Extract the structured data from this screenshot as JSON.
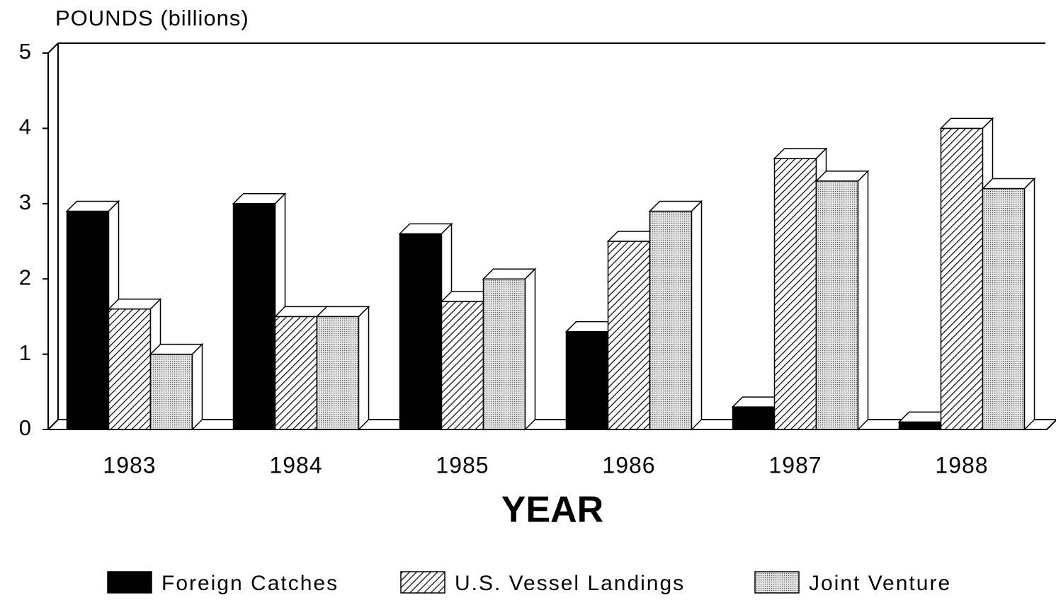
{
  "chart_data": {
    "type": "bar3d",
    "ylabel": "POUNDS (billions)",
    "xlabel": "YEAR",
    "categories": [
      "1983",
      "1984",
      "1985",
      "1986",
      "1987",
      "1988"
    ],
    "series": [
      {
        "name": "Foreign Catches",
        "color": "#000000",
        "pattern": "solid",
        "values": [
          2.9,
          3.0,
          2.6,
          1.3,
          0.3,
          0.1
        ]
      },
      {
        "name": "U.S. Vessel Landings",
        "color": "#000000",
        "pattern": "hatch",
        "values": [
          1.6,
          1.5,
          1.7,
          2.5,
          3.6,
          4.0
        ]
      },
      {
        "name": "Joint Venture",
        "color": "#000000",
        "pattern": "dots",
        "values": [
          1.0,
          1.5,
          2.0,
          2.9,
          3.3,
          3.2
        ]
      }
    ],
    "ylim": [
      0,
      5
    ],
    "yticks": [
      0,
      1,
      2,
      3,
      4,
      5
    ],
    "legend": "bottom"
  }
}
